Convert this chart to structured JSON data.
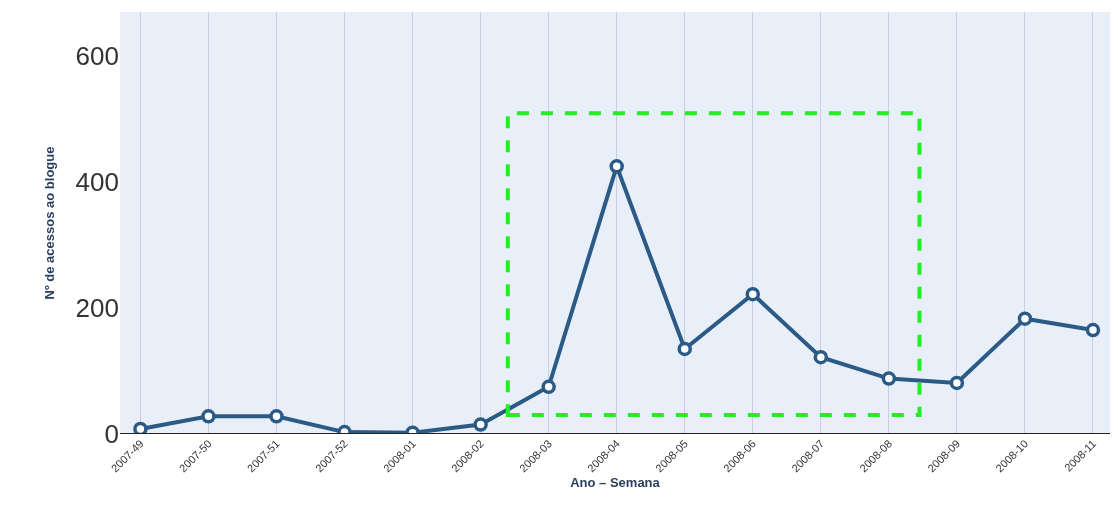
{
  "chart_data": {
    "type": "line",
    "xlabel": "Ano – Semana",
    "ylabel": "Nº de acessos ao blogue",
    "categories": [
      "2007-49",
      "2007-50",
      "2007-51",
      "2007-52",
      "2008-01",
      "2008-02",
      "2008-03",
      "2008-04",
      "2008-05",
      "2008-06",
      "2008-07",
      "2008-08",
      "2008-09",
      "2008-10",
      "2008-11"
    ],
    "series": [
      {
        "color": "#2a5a85",
        "values": [
          8,
          28,
          28,
          3,
          2,
          15,
          75,
          425,
          135,
          222,
          122,
          88,
          81,
          183,
          165
        ]
      }
    ],
    "ylim": [
      0,
      670
    ],
    "yticks": [
      0,
      200,
      400,
      600
    ],
    "grid": "x",
    "marker": "circle",
    "line_style": "solid"
  }
}
